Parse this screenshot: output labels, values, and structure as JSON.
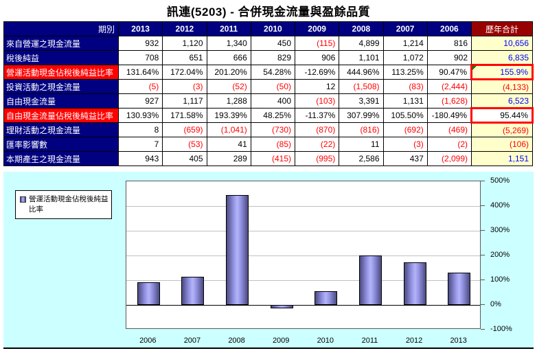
{
  "page_title": "訊連(5203) - 合併現金流量與盈餘品質",
  "colors": {
    "header_bg": "#000080",
    "total_header_bg": "#990000",
    "highlight_row_bg": "#FF0000",
    "total_col_bg": "#FFFFCC",
    "positive_total_text": "#0000FF",
    "negative_text": "#FF0000",
    "chart_bg": "#CCFFFF",
    "bar_fill_center": "#B4B4F7",
    "bar_fill_edge": "#4A4A80"
  },
  "table": {
    "corner_label": "期別",
    "year_columns": [
      "2013",
      "2012",
      "2011",
      "2010",
      "2009",
      "2008",
      "2007",
      "2006"
    ],
    "total_column": "歷年合計",
    "rows": [
      {
        "label": "來自營運之現金流量",
        "highlight": false,
        "values": [
          "932",
          "1,120",
          "1,340",
          "450",
          "(115)",
          "4,899",
          "1,214",
          "816"
        ],
        "total": "10,656"
      },
      {
        "label": "稅後純益",
        "highlight": false,
        "values": [
          "708",
          "651",
          "666",
          "829",
          "906",
          "1,101",
          "1,072",
          "902"
        ],
        "total": "6,835"
      },
      {
        "label": "營運活動現金佔稅後純益比率",
        "highlight": true,
        "values": [
          "131.64%",
          "172.04%",
          "201.20%",
          "54.28%",
          "-12.69%",
          "444.96%",
          "113.25%",
          "90.47%"
        ],
        "total": "155.9%",
        "total_style": "red-border-yellow",
        "comment_marker": true
      },
      {
        "label": "投資活動之現金流量",
        "highlight": false,
        "values": [
          "(5)",
          "(3)",
          "(52)",
          "(50)",
          "12",
          "(1,508)",
          "(83)",
          "(2,444)"
        ],
        "total": "(4,133)"
      },
      {
        "label": "自由現金流量",
        "highlight": false,
        "values": [
          "927",
          "1,117",
          "1,288",
          "400",
          "(103)",
          "3,391",
          "1,131",
          "(1,628)"
        ],
        "total": "6,523"
      },
      {
        "label": "自由現金流量佔稅後純益比率",
        "highlight": true,
        "values": [
          "130.93%",
          "171.58%",
          "193.39%",
          "48.25%",
          "-11.37%",
          "307.99%",
          "105.50%",
          "-180.49%"
        ],
        "total": "95.44%",
        "total_style": "red-border-white"
      },
      {
        "label": "理財活動之現金流量",
        "highlight": false,
        "values": [
          "8",
          "(659)",
          "(1,041)",
          "(730)",
          "(870)",
          "(816)",
          "(692)",
          "(469)"
        ],
        "total": "(5,269)"
      },
      {
        "label": "匯率影響數",
        "highlight": false,
        "values": [
          "7",
          "(53)",
          "41",
          "(85)",
          "(22)",
          "11",
          "(3)",
          "(2)"
        ],
        "total": "(106)"
      },
      {
        "label": "本期產生之現金流量",
        "highlight": false,
        "values": [
          "943",
          "405",
          "289",
          "(415)",
          "(995)",
          "2,586",
          "437",
          "(2,099)"
        ],
        "total": "1,151"
      }
    ]
  },
  "chart_data": {
    "type": "bar",
    "title": "",
    "legend": "營運活動現金佔稅後純益比率",
    "legend_position": "top-left",
    "categories": [
      "2006",
      "2007",
      "2008",
      "2009",
      "2010",
      "2011",
      "2012",
      "2013"
    ],
    "values": [
      90.47,
      113.25,
      444.96,
      -12.69,
      54.28,
      201.2,
      172.04,
      131.64
    ],
    "ylabel": "",
    "xlabel": "",
    "ylim": [
      -100,
      500
    ],
    "y_ticks": [
      "500%",
      "400%",
      "300%",
      "200%",
      "100%",
      "0%",
      "-100%"
    ],
    "y_axis_side": "right",
    "grid": true
  }
}
